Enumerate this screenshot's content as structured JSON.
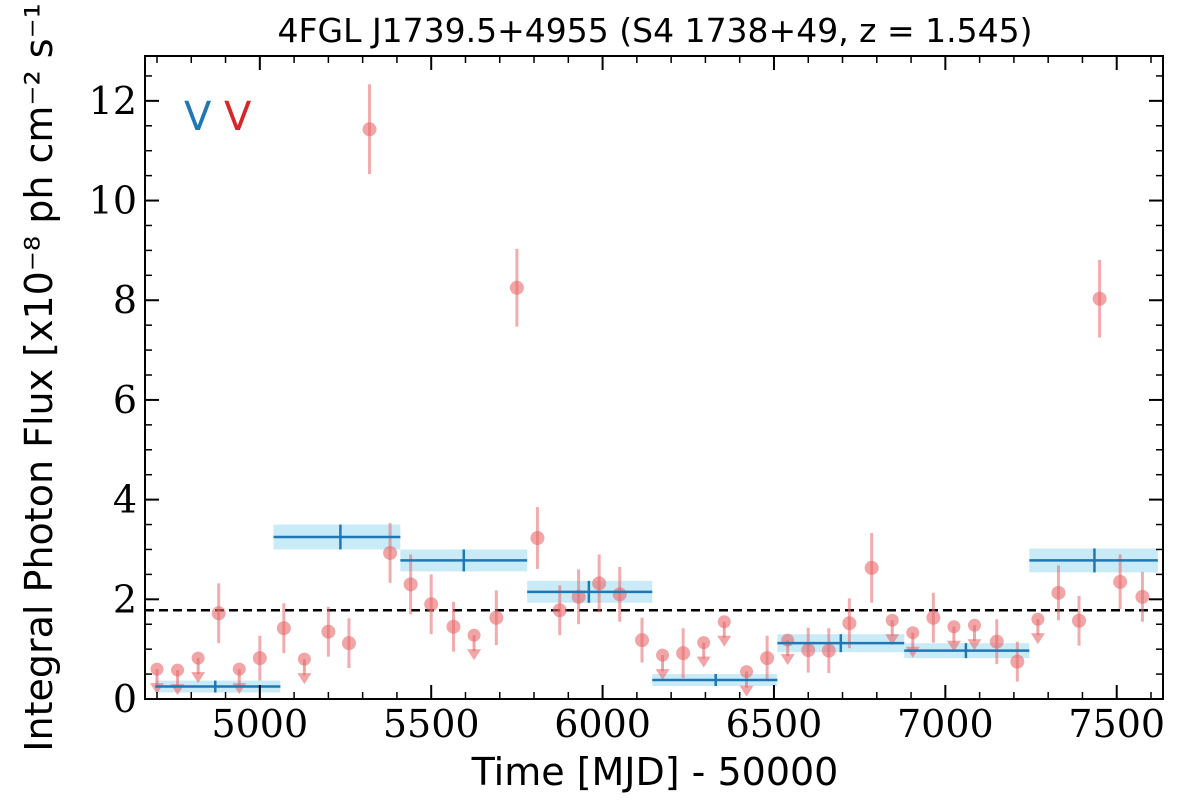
{
  "chart_data": {
    "type": "scatter",
    "title": "4FGL J1739.5+4955 (S4 1738+49, z = 1.545)",
    "xlabel": "Time [MJD] - 50000",
    "ylabel": "Integral Photon Flux [x10⁻⁸ ph cm⁻² s⁻¹]",
    "xlim": [
      4665,
      7635
    ],
    "ylim": [
      0,
      12.9
    ],
    "x_ticks": [
      5000,
      5500,
      6000,
      6500,
      7000,
      7500
    ],
    "y_ticks": [
      0,
      2,
      4,
      6,
      8,
      10,
      12
    ],
    "x_tick_labels": [
      "5000",
      "5500",
      "6000",
      "6500",
      "7000",
      "7500"
    ],
    "y_tick_labels": [
      "0",
      "2",
      "4",
      "6",
      "8",
      "10",
      "12"
    ],
    "markers": [
      {
        "text": "V",
        "color": "#1f77b4"
      },
      {
        "text": "V",
        "color": "#d62728"
      }
    ],
    "reference_line": {
      "y": 1.78,
      "style": "dashed",
      "color": "#000000"
    },
    "colors": {
      "points": "#e8696b",
      "bins": "#1f77b4",
      "band": "#bfe7f7"
    },
    "points": [
      {
        "x": 4700,
        "y": 0.6,
        "err": 0,
        "upper_limit": true
      },
      {
        "x": 4760,
        "y": 0.58,
        "err": 0,
        "upper_limit": true
      },
      {
        "x": 4820,
        "y": 0.82,
        "err": 0,
        "upper_limit": true
      },
      {
        "x": 4880,
        "y": 1.72,
        "err": 0.6,
        "upper_limit": false
      },
      {
        "x": 4940,
        "y": 0.6,
        "err": 0,
        "upper_limit": true
      },
      {
        "x": 5000,
        "y": 0.82,
        "err": 0.45,
        "upper_limit": false
      },
      {
        "x": 5070,
        "y": 1.42,
        "err": 0.5,
        "upper_limit": false
      },
      {
        "x": 5130,
        "y": 0.8,
        "err": 0,
        "upper_limit": true
      },
      {
        "x": 5200,
        "y": 1.35,
        "err": 0.5,
        "upper_limit": false
      },
      {
        "x": 5260,
        "y": 1.12,
        "err": 0.5,
        "upper_limit": false
      },
      {
        "x": 5320,
        "y": 11.43,
        "err": 0.9,
        "upper_limit": false
      },
      {
        "x": 5380,
        "y": 2.93,
        "err": 0.6,
        "upper_limit": false
      },
      {
        "x": 5440,
        "y": 2.3,
        "err": 0.6,
        "upper_limit": false
      },
      {
        "x": 5500,
        "y": 1.9,
        "err": 0.6,
        "upper_limit": false
      },
      {
        "x": 5565,
        "y": 1.45,
        "err": 0.5,
        "upper_limit": false
      },
      {
        "x": 5625,
        "y": 1.28,
        "err": 0,
        "upper_limit": true
      },
      {
        "x": 5690,
        "y": 1.63,
        "err": 0.55,
        "upper_limit": false
      },
      {
        "x": 5750,
        "y": 8.25,
        "err": 0.78,
        "upper_limit": false
      },
      {
        "x": 5810,
        "y": 3.23,
        "err": 0.62,
        "upper_limit": false
      },
      {
        "x": 5875,
        "y": 1.78,
        "err": 0.5,
        "upper_limit": false
      },
      {
        "x": 5930,
        "y": 2.05,
        "err": 0.55,
        "upper_limit": false
      },
      {
        "x": 5990,
        "y": 2.32,
        "err": 0.58,
        "upper_limit": false
      },
      {
        "x": 6050,
        "y": 2.1,
        "err": 0.55,
        "upper_limit": false
      },
      {
        "x": 6115,
        "y": 1.18,
        "err": 0.45,
        "upper_limit": false
      },
      {
        "x": 6175,
        "y": 0.88,
        "err": 0,
        "upper_limit": true
      },
      {
        "x": 6235,
        "y": 0.92,
        "err": 0.5,
        "upper_limit": false
      },
      {
        "x": 6295,
        "y": 1.13,
        "err": 0,
        "upper_limit": true
      },
      {
        "x": 6355,
        "y": 1.55,
        "err": 0,
        "upper_limit": true
      },
      {
        "x": 6420,
        "y": 0.55,
        "err": 0,
        "upper_limit": true
      },
      {
        "x": 6480,
        "y": 0.82,
        "err": 0.45,
        "upper_limit": false
      },
      {
        "x": 6540,
        "y": 1.18,
        "err": 0,
        "upper_limit": true
      },
      {
        "x": 6600,
        "y": 0.98,
        "err": 0.45,
        "upper_limit": false
      },
      {
        "x": 6660,
        "y": 0.97,
        "err": 0.45,
        "upper_limit": false
      },
      {
        "x": 6720,
        "y": 1.52,
        "err": 0.5,
        "upper_limit": false
      },
      {
        "x": 6785,
        "y": 2.63,
        "err": 0.7,
        "upper_limit": false
      },
      {
        "x": 6845,
        "y": 1.58,
        "err": 0,
        "upper_limit": true
      },
      {
        "x": 6905,
        "y": 1.33,
        "err": 0,
        "upper_limit": true
      },
      {
        "x": 6965,
        "y": 1.63,
        "err": 0.5,
        "upper_limit": false
      },
      {
        "x": 7025,
        "y": 1.45,
        "err": 0,
        "upper_limit": true
      },
      {
        "x": 7085,
        "y": 1.48,
        "err": 0,
        "upper_limit": true
      },
      {
        "x": 7150,
        "y": 1.15,
        "err": 0.45,
        "upper_limit": false
      },
      {
        "x": 7210,
        "y": 0.75,
        "err": 0.4,
        "upper_limit": false
      },
      {
        "x": 7270,
        "y": 1.6,
        "err": 0,
        "upper_limit": true
      },
      {
        "x": 7330,
        "y": 2.13,
        "err": 0.55,
        "upper_limit": false
      },
      {
        "x": 7390,
        "y": 1.57,
        "err": 0.5,
        "upper_limit": false
      },
      {
        "x": 7450,
        "y": 8.03,
        "err": 0.78,
        "upper_limit": false
      },
      {
        "x": 7510,
        "y": 2.35,
        "err": 0.55,
        "upper_limit": false
      },
      {
        "x": 7575,
        "y": 2.05,
        "err": 0.5,
        "upper_limit": false
      }
    ],
    "bayesian_blocks": [
      {
        "x_start": 4695,
        "x_end": 5060,
        "x_center": 4870,
        "y": 0.25,
        "y_err": 0.12
      },
      {
        "x_start": 5040,
        "x_end": 5410,
        "x_center": 5235,
        "y": 3.25,
        "y_err": 0.25
      },
      {
        "x_start": 5410,
        "x_end": 5780,
        "x_center": 5595,
        "y": 2.78,
        "y_err": 0.22
      },
      {
        "x_start": 5780,
        "x_end": 6145,
        "x_center": 5960,
        "y": 2.15,
        "y_err": 0.22
      },
      {
        "x_start": 6145,
        "x_end": 6510,
        "x_center": 6330,
        "y": 0.38,
        "y_err": 0.12
      },
      {
        "x_start": 6510,
        "x_end": 6880,
        "x_center": 6695,
        "y": 1.12,
        "y_err": 0.18
      },
      {
        "x_start": 6880,
        "x_end": 7245,
        "x_center": 7060,
        "y": 0.97,
        "y_err": 0.15
      },
      {
        "x_start": 7245,
        "x_end": 7620,
        "x_center": 7435,
        "y": 2.78,
        "y_err": 0.24
      }
    ]
  }
}
